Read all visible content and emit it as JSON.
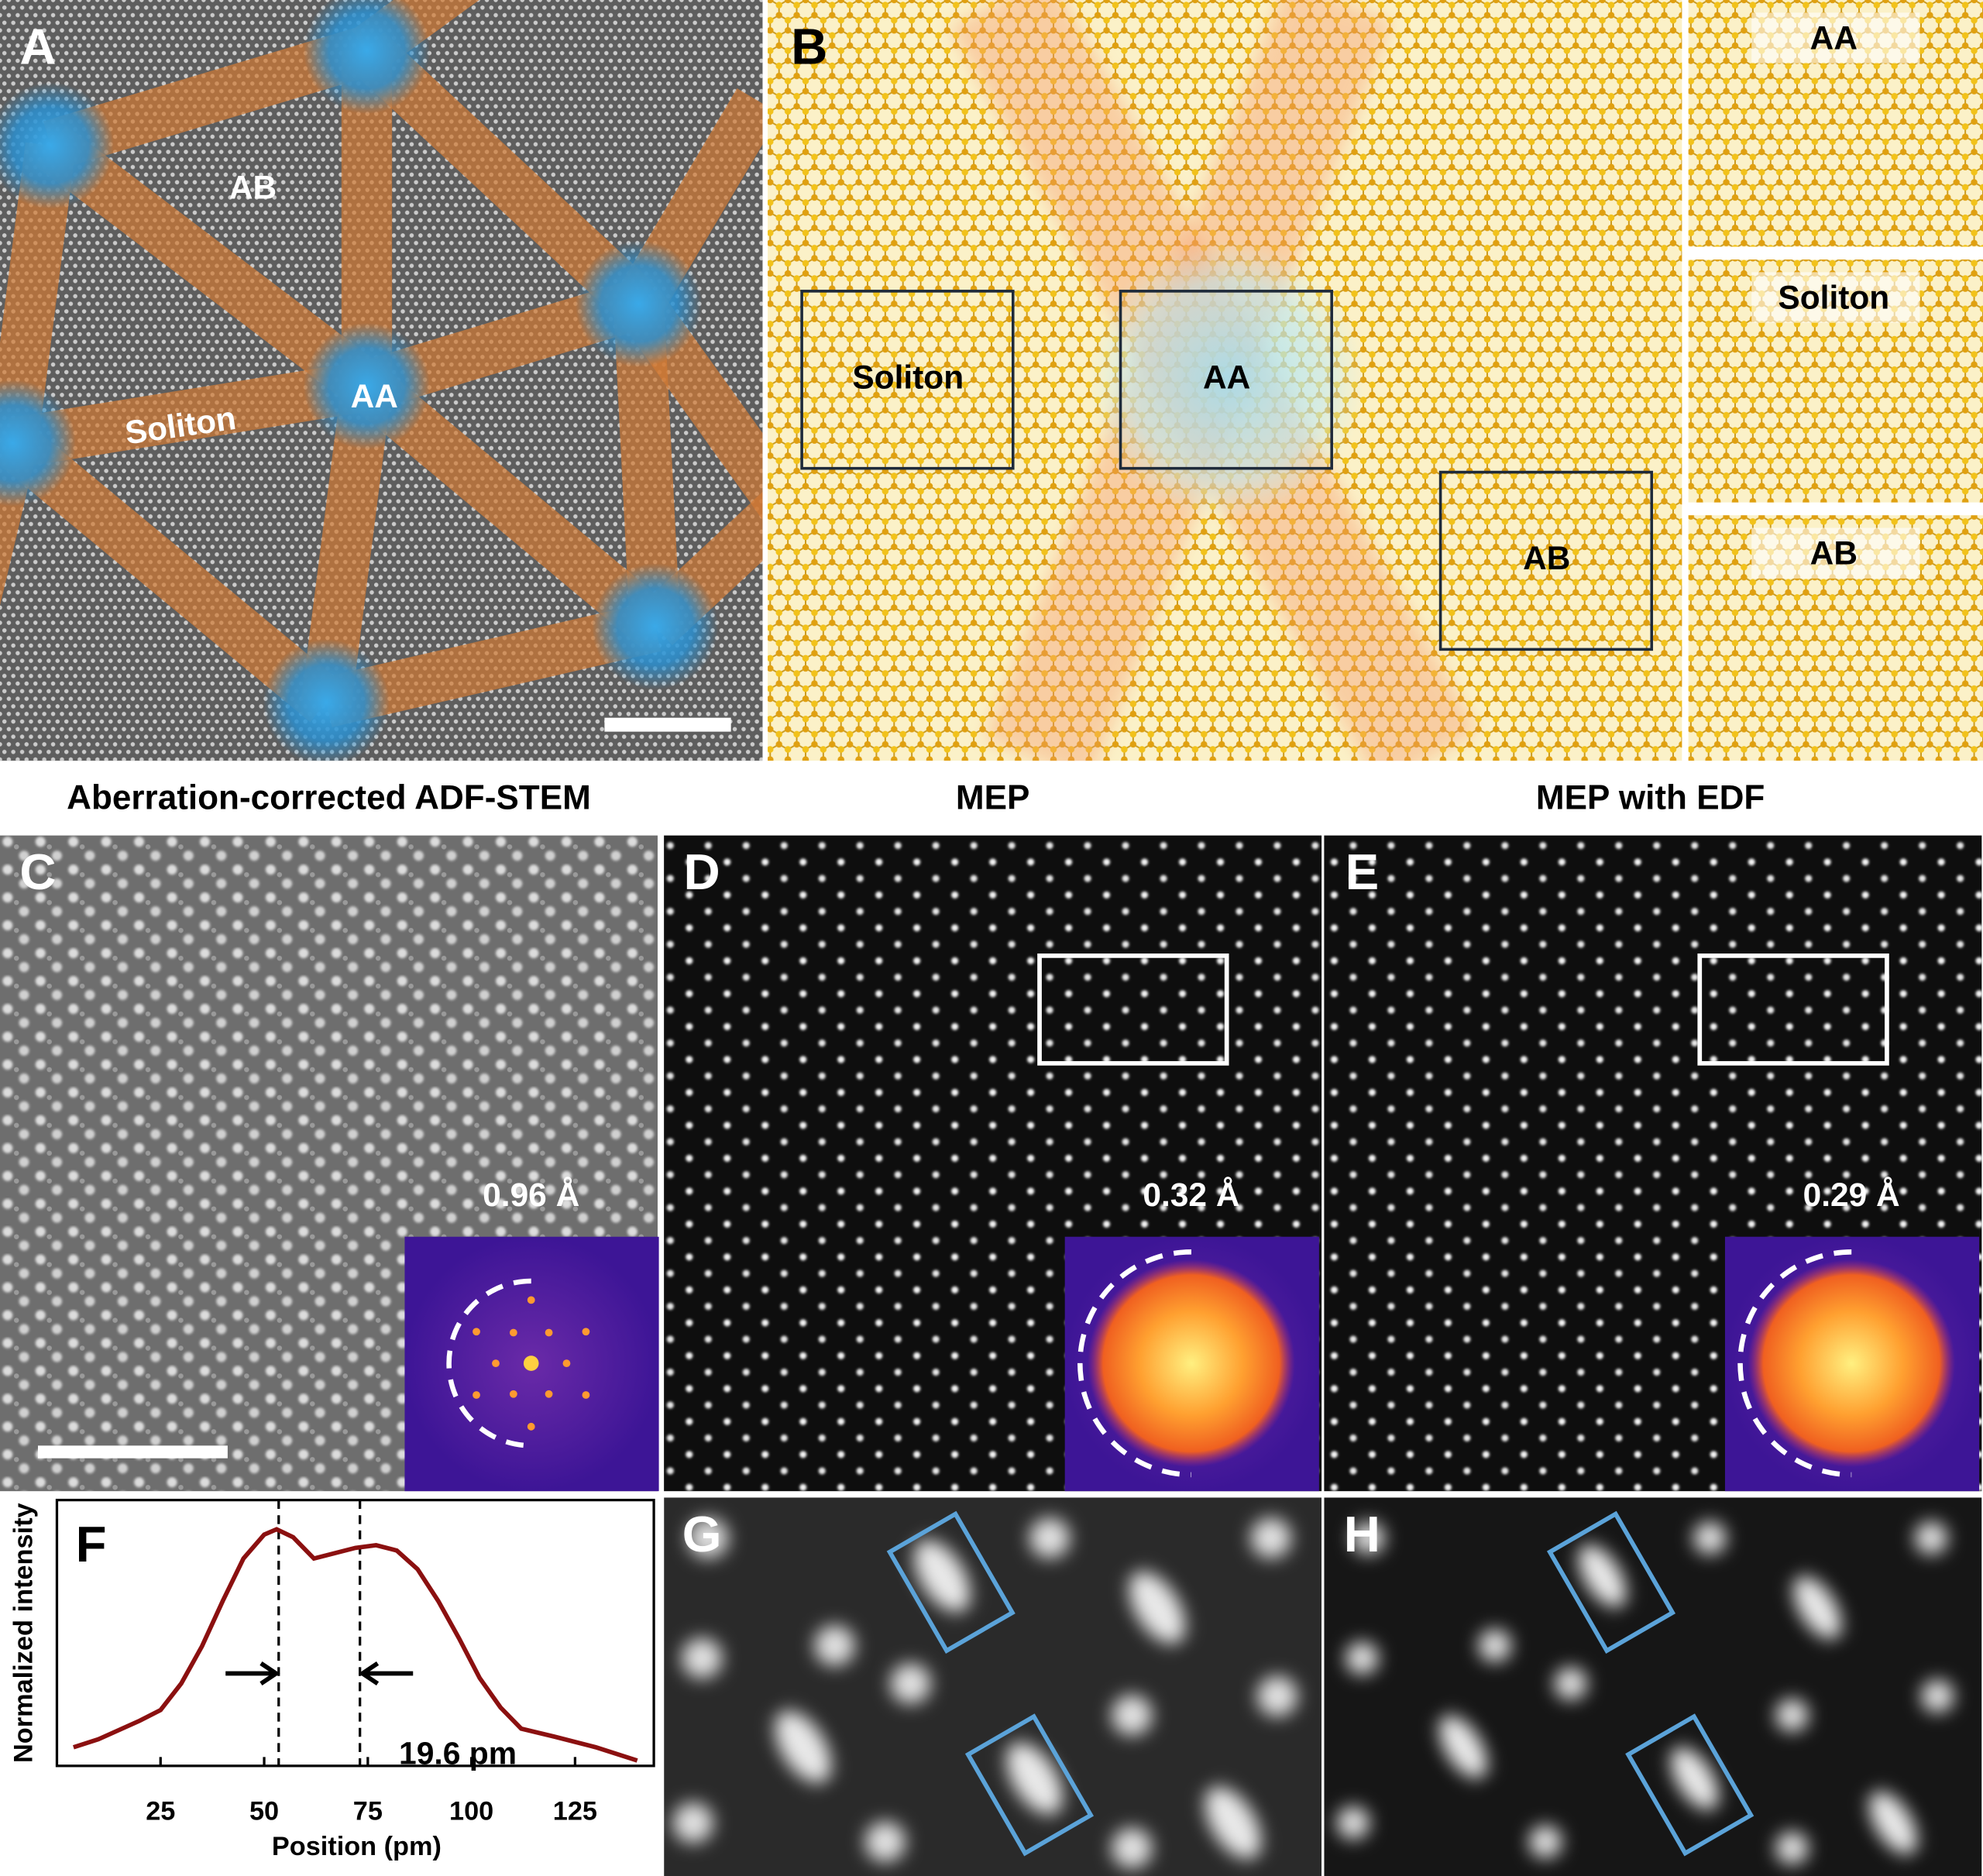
{
  "panel_a": {
    "letter": "A",
    "ab": "AB",
    "soliton": "Soliton",
    "aa": "AA"
  },
  "panel_b": {
    "letter": "B",
    "boxes": [
      "Soliton",
      "AA",
      "AB"
    ],
    "insets": [
      "AA",
      "Soliton",
      "AB"
    ]
  },
  "headings": [
    "Aberration-corrected ADF-STEM",
    "MEP",
    "MEP with EDF"
  ],
  "panel_c": {
    "letter": "C",
    "resolution": "0.96 Å"
  },
  "panel_d": {
    "letter": "D",
    "resolution": "0.32 Å"
  },
  "panel_e": {
    "letter": "E",
    "resolution": "0.29 Å"
  },
  "chart_data": {
    "type": "line",
    "panel_label": "F",
    "x_label": "Position (pm)",
    "y_label": "Normalized intensity",
    "annotation": "19.6 pm",
    "x": [
      4,
      10,
      20,
      25,
      30,
      35,
      40,
      45,
      50,
      53,
      57,
      62,
      67,
      72,
      77,
      82,
      87,
      92,
      97,
      102,
      107,
      112,
      120,
      130,
      140
    ],
    "series": [
      {
        "color": "#8b1010",
        "values": [
          0.07,
          0.1,
          0.17,
          0.21,
          0.31,
          0.45,
          0.62,
          0.78,
          0.87,
          0.89,
          0.86,
          0.78,
          0.8,
          0.82,
          0.83,
          0.81,
          0.74,
          0.62,
          0.48,
          0.33,
          0.22,
          0.14,
          0.11,
          0.07,
          0.02
        ]
      }
    ],
    "vlines": [
      53.5,
      73.1
    ],
    "xlim": [
      0,
      144
    ],
    "xticks": [
      25,
      50,
      75,
      100,
      125
    ],
    "ylim": [
      0,
      1
    ]
  },
  "panel_g": {
    "letter": "G"
  },
  "panel_h": {
    "letter": "H"
  }
}
